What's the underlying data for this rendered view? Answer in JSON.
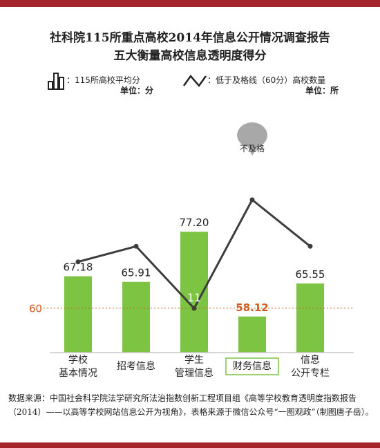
{
  "header": {
    "title_line1": "社科院115所重点高校2014年信息公开情况调查报告",
    "title_line2": "五大衡量高校信息透明度得分"
  },
  "legend": {
    "bar_label": "：115所高校平均分",
    "bar_unit": "单位：分",
    "line_label": "：低于及格线（60分）高校数量",
    "line_unit": "单位：所"
  },
  "callout": {
    "label": "不及格"
  },
  "reference": {
    "label": "60",
    "value": 60
  },
  "colors": {
    "bar": "#7dc443",
    "line": "#3d3d3d",
    "reference": "#d35a1e",
    "accent": "#a3242b"
  },
  "chart_data": {
    "type": "bar",
    "categories": [
      [
        "学校",
        "基本情况"
      ],
      [
        "招考信息"
      ],
      [
        "学生",
        "管理信息"
      ],
      [
        "财务信息"
      ],
      [
        "信息",
        "公开专栏"
      ]
    ],
    "highlight_category_index": 3,
    "series": [
      {
        "type": "bar",
        "values": [
          67.18,
          65.91,
          77.2,
          58.12,
          65.55
        ],
        "labels": [
          "67.18",
          "65.91",
          "77.20",
          "58.12",
          "65.55"
        ]
      },
      {
        "type": "line",
        "values": [
          29,
          35,
          11,
          53,
          35
        ],
        "labels": [
          "29",
          "35",
          "11",
          "53",
          "35"
        ]
      }
    ],
    "reference_line": 60
  },
  "source_note": "数据来源：中国社会科学院法学研究所法治指数创新工程项目组《高等学校教育透明度指数报告（2014）——以高等学校网站信息公开为视角》，表格来源于微信公众号“一图观政”（制图唐子岳）。"
}
